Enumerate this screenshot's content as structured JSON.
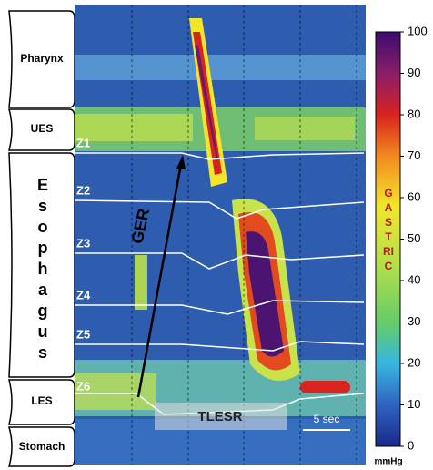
{
  "chart_data": {
    "type": "heatmap",
    "regions": [
      "Pharynx",
      "UES",
      "Esophagus",
      "LES",
      "Stomach"
    ],
    "sensors": [
      "Z1",
      "Z2",
      "Z3",
      "Z4",
      "Z5",
      "Z6"
    ],
    "annotations": {
      "arrow": "GER",
      "box": "TLESR",
      "scale_bar": "5 sec"
    },
    "colorbar": {
      "lim": [
        0,
        100
      ],
      "ticks": [
        0,
        10,
        20,
        30,
        40,
        50,
        60,
        70,
        80,
        90,
        100
      ],
      "label": "mmHg",
      "text": "GASTRIC"
    }
  }
}
